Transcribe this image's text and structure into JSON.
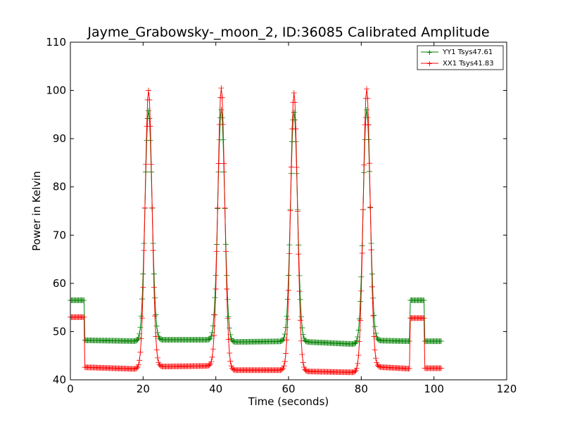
{
  "chart_data": {
    "type": "line",
    "title": "Jayme_Grabowsky-_moon_2, ID:36085 Calibrated Amplitude",
    "xlabel": "Time (seconds)",
    "ylabel": "Power in Kelvin",
    "xlim": [
      0,
      120
    ],
    "ylim": [
      40,
      110
    ],
    "xticks": [
      "0",
      "20",
      "40",
      "60",
      "80",
      "100",
      "120"
    ],
    "yticks": [
      "40",
      "50",
      "60",
      "70",
      "80",
      "90",
      "100",
      "110"
    ],
    "legend_position": "top-right",
    "grid": false,
    "series": [
      {
        "name": "YY1 Tsys47.61",
        "color": "#008000",
        "marker": "+",
        "base": [
          [
            0,
            4.0,
            56.5
          ],
          [
            4.0,
            20.0,
            48.2,
            48.0
          ],
          [
            20.0,
            40.0,
            48.3,
            48.3
          ],
          [
            40.0,
            61.0,
            47.8,
            48.0
          ],
          [
            61.0,
            81.0,
            48.0,
            47.3
          ],
          [
            81.0,
            93.5,
            48.2,
            48.0
          ],
          [
            93.5,
            97.5,
            56.5
          ],
          [
            97.5,
            102.0,
            48.0
          ]
        ],
        "peaks": [
          [
            21.5,
            95.8
          ],
          [
            41.5,
            96.0
          ],
          [
            61.5,
            95.5
          ],
          [
            81.5,
            96.0
          ]
        ]
      },
      {
        "name": "XX1 Tsys41.83",
        "color": "#ff0000",
        "marker": "+",
        "base": [
          [
            0,
            4.0,
            53.0
          ],
          [
            4.0,
            20.0,
            42.6,
            42.2
          ],
          [
            20.0,
            40.0,
            42.7,
            42.9
          ],
          [
            40.0,
            61.0,
            42.0,
            42.0
          ],
          [
            61.0,
            81.0,
            41.8,
            41.5
          ],
          [
            81.0,
            93.5,
            42.8,
            42.3
          ],
          [
            93.5,
            97.5,
            52.8
          ],
          [
            97.5,
            102.0,
            42.4
          ]
        ],
        "peaks": [
          [
            21.5,
            100.0
          ],
          [
            41.5,
            100.5
          ],
          [
            61.5,
            99.5
          ],
          [
            81.5,
            100.3
          ]
        ]
      }
    ]
  }
}
